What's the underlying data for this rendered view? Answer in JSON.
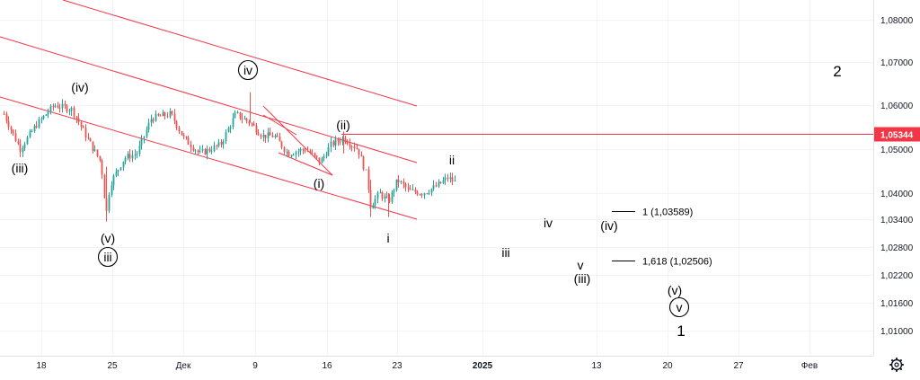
{
  "chart_data": {
    "type": "candlestick",
    "y_ticks": [
      "1,08000",
      "1,07000",
      "1,06000",
      "1,05000",
      "1,04000",
      "1,03400",
      "1,02800",
      "1,02200",
      "1,01600",
      "1,01000"
    ],
    "x_ticks": [
      {
        "label": "18",
        "bold": false
      },
      {
        "label": "25",
        "bold": false
      },
      {
        "label": "Дек",
        "bold": false
      },
      {
        "label": "9",
        "bold": false
      },
      {
        "label": "16",
        "bold": false
      },
      {
        "label": "23",
        "bold": false
      },
      {
        "label": "2025",
        "bold": true
      },
      {
        "label": "13",
        "bold": false
      },
      {
        "label": "20",
        "bold": false
      },
      {
        "label": "27",
        "bold": false
      },
      {
        "label": "Фев",
        "bold": false
      }
    ],
    "price_line": {
      "value": 1.05344,
      "label": "1,05344",
      "color": "#f23645"
    },
    "fib_levels": [
      {
        "label": "1 (1,03589)",
        "value": 1.03589
      },
      {
        "label": "1,618 (1,02506)",
        "value": 1.02506
      }
    ],
    "wave_labels": [
      {
        "text": "(iii)",
        "circled": false,
        "size": "normal"
      },
      {
        "text": "(iv)",
        "circled": false,
        "size": "normal"
      },
      {
        "text": "(v)",
        "circled": false,
        "size": "normal"
      },
      {
        "text": "iii",
        "circled": true,
        "size": "normal"
      },
      {
        "text": "iv",
        "circled": true,
        "size": "normal"
      },
      {
        "text": "(ii)",
        "circled": false,
        "size": "normal"
      },
      {
        "text": "(i)",
        "circled": false,
        "size": "normal"
      },
      {
        "text": "i",
        "circled": false,
        "size": "normal"
      },
      {
        "text": "ii",
        "circled": false,
        "size": "normal"
      },
      {
        "text": "iii",
        "circled": false,
        "size": "normal"
      },
      {
        "text": "iv",
        "circled": false,
        "size": "normal"
      },
      {
        "text": "v",
        "circled": false,
        "size": "normal"
      },
      {
        "text": "(iii)",
        "circled": false,
        "size": "normal"
      },
      {
        "text": "(iv)",
        "circled": false,
        "size": "normal"
      },
      {
        "text": "(v)",
        "circled": false,
        "size": "normal"
      },
      {
        "text": "v",
        "circled": true,
        "size": "normal"
      },
      {
        "text": "1",
        "circled": false,
        "size": "big"
      },
      {
        "text": "2",
        "circled": false,
        "size": "big"
      }
    ],
    "colors": {
      "up": "#26a69a",
      "down": "#ef5350",
      "lines": "#f23645",
      "grid": "#f0f3fa"
    },
    "icons": {
      "settings": "gear-icon"
    }
  }
}
